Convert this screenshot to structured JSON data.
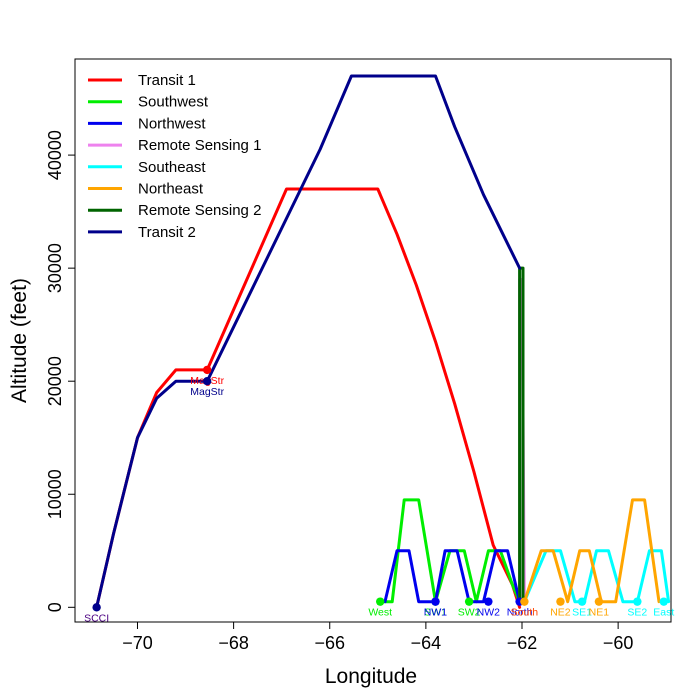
{
  "chart_data": {
    "type": "line",
    "title": "",
    "xlabel": "Longitude",
    "ylabel": "Altitude (feet)",
    "xlim": [
      -71.3,
      -58.9
    ],
    "ylim": [
      -1300,
      48500
    ],
    "x_ticks": [
      -70,
      -68,
      -66,
      -64,
      -62,
      -60
    ],
    "y_ticks": [
      0,
      10000,
      20000,
      30000,
      40000
    ],
    "legend_position": "top-left",
    "series": [
      {
        "name": "Transit 1",
        "color": "#ff0000",
        "x": [
          -70.85,
          -70.5,
          -70.0,
          -69.6,
          -69.2,
          -68.55,
          -68.55,
          -66.9,
          -65.0,
          -64.6,
          -64.2,
          -63.8,
          -63.4,
          -63.0,
          -62.6,
          -62.2,
          -62.05
        ],
        "y": [
          0,
          6500,
          15000,
          19000,
          21000,
          21000,
          21000,
          37000,
          37000,
          33000,
          28500,
          23500,
          18000,
          12000,
          5500,
          2000,
          0
        ]
      },
      {
        "name": "Southwest",
        "color": "#00ee00",
        "x": [
          -62.05,
          -62.2,
          -62.45,
          -62.7,
          -62.95,
          -63.2,
          -63.5,
          -63.8,
          -64.15,
          -64.45,
          -64.7,
          -64.95
        ],
        "y": [
          500,
          2000,
          5000,
          5000,
          500,
          5000,
          5000,
          500,
          9500,
          9500,
          500,
          500
        ]
      },
      {
        "name": "Northwest",
        "color": "#0000ee",
        "x": [
          -62.05,
          -62.3,
          -62.55,
          -62.8,
          -63.1,
          -63.35,
          -63.6,
          -63.8,
          -64.15,
          -64.35,
          -64.6,
          -64.85
        ],
        "y": [
          500,
          5000,
          5000,
          500,
          500,
          5000,
          5000,
          500,
          500,
          5000,
          5000,
          500
        ]
      },
      {
        "name": "Remote Sensing 1",
        "color": "#ee82ee",
        "x": [
          -62.05,
          -62.05,
          -62.0,
          -61.95
        ],
        "y": [
          500,
          29000,
          29000,
          500
        ]
      },
      {
        "name": "Southeast",
        "color": "#00ffff",
        "x": [
          -61.95,
          -61.5,
          -61.2,
          -60.9,
          -60.7,
          -60.45,
          -60.2,
          -59.9,
          -59.6,
          -59.35,
          -59.1,
          -58.95
        ],
        "y": [
          500,
          5000,
          5000,
          500,
          500,
          5000,
          5000,
          500,
          500,
          5000,
          5000,
          500
        ]
      },
      {
        "name": "Northeast",
        "color": "#ffa500",
        "x": [
          -61.95,
          -61.6,
          -61.35,
          -61.05,
          -60.8,
          -60.6,
          -60.35,
          -60.05,
          -59.7,
          -59.45,
          -59.15
        ],
        "y": [
          500,
          5000,
          5000,
          500,
          5000,
          5000,
          500,
          500,
          9500,
          9500,
          500
        ]
      },
      {
        "name": "Remote Sensing 2",
        "color": "#006400",
        "x": [
          -62.05,
          -62.05,
          -61.98,
          -61.98,
          -61.95
        ],
        "y": [
          500,
          30000,
          30000,
          500,
          500
        ]
      },
      {
        "name": "Transit 2",
        "color": "#00008b",
        "x": [
          -70.85,
          -70.5,
          -70.0,
          -69.6,
          -69.2,
          -68.55,
          -68.55,
          -66.2,
          -65.55,
          -63.8,
          -63.4,
          -62.8,
          -62.05
        ],
        "y": [
          0,
          6500,
          15000,
          18500,
          20000,
          20000,
          20000,
          40500,
          47000,
          47000,
          42500,
          36500,
          30000
        ]
      }
    ],
    "markers": [
      {
        "label": "SCCI",
        "x": -70.85,
        "y": 0,
        "color": "#00008b",
        "label_color": "#4b0082",
        "label_pos": "below"
      },
      {
        "label": "MagStr",
        "x": -68.55,
        "y": 21000,
        "color": "#ff0000",
        "label_color": "#ff0000",
        "label_pos": "below"
      },
      {
        "label": "MagStr",
        "x": -68.55,
        "y": 20000,
        "color": "#00008b",
        "label_color": "#00008b",
        "label_pos": "below"
      },
      {
        "label": "West",
        "x": -64.95,
        "y": 500,
        "color": "#00ee00",
        "label_color": "#00ee00",
        "label_pos": "below"
      },
      {
        "label": "SW1",
        "x": -63.8,
        "y": 500,
        "color": "#00ee00",
        "label_color": "#00ee00",
        "label_pos": "below"
      },
      {
        "label": "NW1",
        "x": -63.8,
        "y": 500,
        "color": "#0000ee",
        "label_color": "#0000ee",
        "label_pos": "below"
      },
      {
        "label": "SW2",
        "x": -63.1,
        "y": 500,
        "color": "#00ee00",
        "label_color": "#00ee00",
        "label_pos": "below"
      },
      {
        "label": "NW2",
        "x": -62.7,
        "y": 500,
        "color": "#0000ee",
        "label_color": "#0000ee",
        "label_pos": "below"
      },
      {
        "label": "North",
        "x": -62.05,
        "y": 500,
        "color": "#0000ee",
        "label_color": "#0000ee",
        "label_pos": "below"
      },
      {
        "label": "South",
        "x": -61.95,
        "y": 500,
        "color": "#ffa500",
        "label_color": "#ff4500",
        "label_pos": "below"
      },
      {
        "label": "NE2",
        "x": -61.2,
        "y": 500,
        "color": "#ffa500",
        "label_color": "#ffa500",
        "label_pos": "below"
      },
      {
        "label": "SE1",
        "x": -60.75,
        "y": 500,
        "color": "#00ffff",
        "label_color": "#00ffff",
        "label_pos": "below"
      },
      {
        "label": "NE1",
        "x": -60.4,
        "y": 500,
        "color": "#ffa500",
        "label_color": "#ffa500",
        "label_pos": "below"
      },
      {
        "label": "SE2",
        "x": -59.6,
        "y": 500,
        "color": "#00ffff",
        "label_color": "#00ffff",
        "label_pos": "below"
      },
      {
        "label": "East",
        "x": -59.05,
        "y": 500,
        "color": "#00ffff",
        "label_color": "#00ffff",
        "label_pos": "below"
      }
    ]
  }
}
